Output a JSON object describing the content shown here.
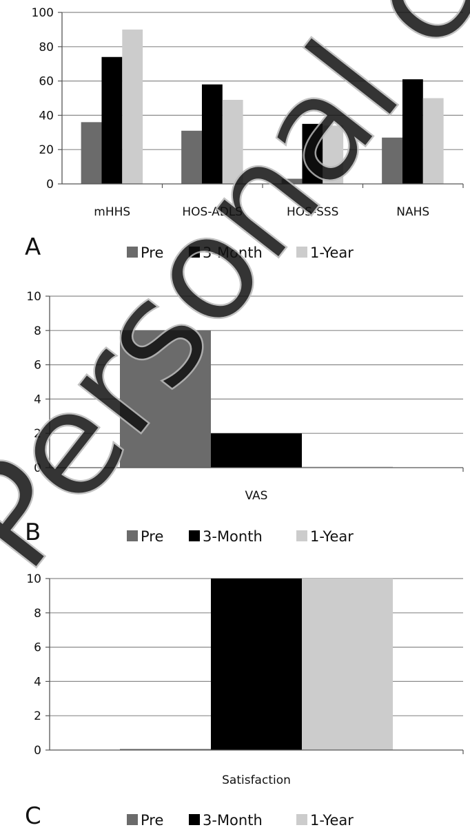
{
  "watermark": "Personal copy",
  "chart_data": [
    {
      "type": "bar",
      "panel": "A",
      "categories": [
        "mHHS",
        "HOS-ADLS",
        "HOS-SSS",
        "NAHS"
      ],
      "series": [
        {
          "name": "Pre",
          "values": [
            36,
            31,
            3,
            27
          ],
          "color": "#6b6b6b"
        },
        {
          "name": "3-Month",
          "values": [
            74,
            58,
            35,
            61
          ],
          "color": "#000000"
        },
        {
          "name": "1-Year",
          "values": [
            90,
            49,
            34,
            50
          ],
          "color": "#cccccc"
        }
      ],
      "ylim": [
        0,
        100
      ],
      "yticks": [
        0,
        20,
        40,
        60,
        80,
        100
      ],
      "grid": true,
      "legend": "bottom"
    },
    {
      "type": "bar",
      "panel": "B",
      "categories": [
        "VAS"
      ],
      "series": [
        {
          "name": "Pre",
          "values": [
            8
          ],
          "color": "#6b6b6b"
        },
        {
          "name": "3-Month",
          "values": [
            2
          ],
          "color": "#000000"
        },
        {
          "name": "1-Year",
          "values": [
            0
          ],
          "color": "#cccccc"
        }
      ],
      "ylim": [
        0,
        10
      ],
      "yticks": [
        0,
        2,
        4,
        6,
        8,
        10
      ],
      "grid": true,
      "legend": "bottom"
    },
    {
      "type": "bar",
      "panel": "C",
      "categories": [
        "Satisfaction"
      ],
      "series": [
        {
          "name": "Pre",
          "values": [
            0
          ],
          "color": "#6b6b6b"
        },
        {
          "name": "3-Month",
          "values": [
            10
          ],
          "color": "#000000"
        },
        {
          "name": "1-Year",
          "values": [
            10
          ],
          "color": "#cccccc"
        }
      ],
      "ylim": [
        0,
        10
      ],
      "yticks": [
        0,
        2,
        4,
        6,
        8,
        10
      ],
      "grid": true,
      "legend": "bottom"
    }
  ]
}
